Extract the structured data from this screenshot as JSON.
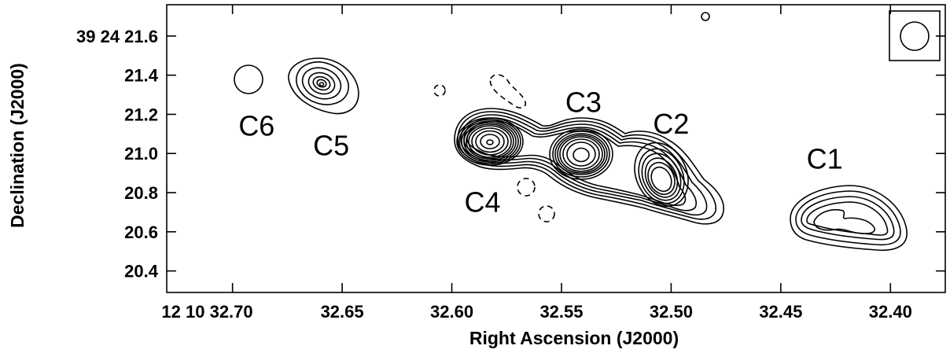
{
  "chart_data": {
    "type": "contour",
    "title": "",
    "xlabel": "Right Ascension (J2000)",
    "ylabel": "Declination (J2000)",
    "xlim": [
      32.73,
      32.375
    ],
    "ylim": [
      20.29,
      21.76
    ],
    "x_ticks": [
      {
        "value": 32.7,
        "label": "12 10 32.70"
      },
      {
        "value": 32.65,
        "label": "32.65"
      },
      {
        "value": 32.6,
        "label": "32.60"
      },
      {
        "value": 32.55,
        "label": "32.55"
      },
      {
        "value": 32.5,
        "label": "32.50"
      },
      {
        "value": 32.45,
        "label": "32.45"
      },
      {
        "value": 32.4,
        "label": "32.40"
      }
    ],
    "y_ticks": [
      {
        "value": 21.6,
        "label": "39 24 21.6"
      },
      {
        "value": 21.4,
        "label": "21.4"
      },
      {
        "value": 21.2,
        "label": "21.2"
      },
      {
        "value": 21.0,
        "label": "21.0"
      },
      {
        "value": 20.8,
        "label": "20.8"
      },
      {
        "value": 20.6,
        "label": "20.6"
      },
      {
        "value": 20.4,
        "label": "20.4"
      }
    ],
    "components": [
      {
        "name": "C1",
        "x": 32.425,
        "y": 20.65,
        "label_x": 32.43,
        "label_y": 20.97
      },
      {
        "name": "C2",
        "x": 32.503,
        "y": 20.87,
        "label_x": 32.5,
        "label_y": 21.15
      },
      {
        "name": "C3",
        "x": 32.541,
        "y": 21.0,
        "label_x": 32.54,
        "label_y": 21.26
      },
      {
        "name": "C4",
        "x": 32.579,
        "y": 21.07,
        "label_x": 32.586,
        "label_y": 20.75
      },
      {
        "name": "C5",
        "x": 32.652,
        "y": 21.36,
        "label_x": 32.655,
        "label_y": 21.04
      },
      {
        "name": "C6",
        "x": 32.686,
        "y": 21.38,
        "label_x": 32.689,
        "label_y": 21.14
      }
    ],
    "contour_levels": {
      "positive_solid": true,
      "negative_dashed": true
    },
    "beam": {
      "shape": "circle",
      "location": "top-right"
    },
    "grid": false
  }
}
